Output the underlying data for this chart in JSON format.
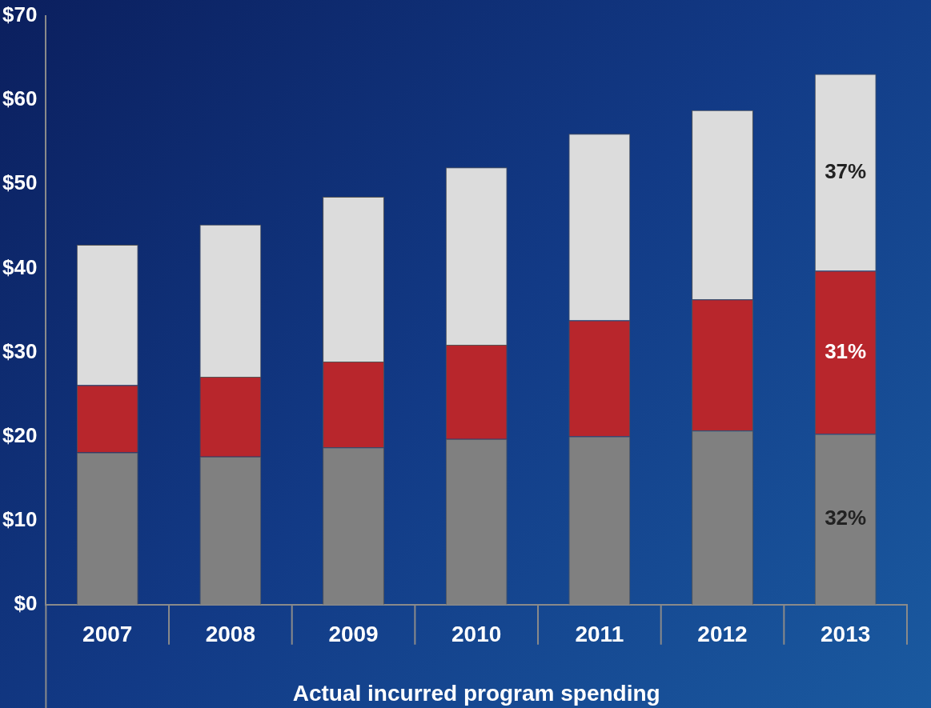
{
  "chart_data": {
    "type": "bar",
    "stacked": true,
    "xlabel": "Actual incurred program spending",
    "categories": [
      "2007",
      "2008",
      "2009",
      "2010",
      "2011",
      "2012",
      "2013"
    ],
    "series": [
      {
        "color": "#808080",
        "values": [
          18.1,
          17.6,
          18.7,
          19.7,
          20.0,
          20.7,
          20.3
        ]
      },
      {
        "color": "#b8262c",
        "values": [
          8.0,
          9.5,
          10.2,
          11.2,
          13.8,
          15.6,
          19.4
        ]
      },
      {
        "color": "#dcdcdc",
        "values": [
          16.7,
          18.1,
          19.6,
          21.1,
          22.2,
          22.5,
          23.4
        ]
      }
    ],
    "annotations": [
      "32%",
      "31%",
      "37%"
    ],
    "ylim": [
      0,
      70
    ],
    "yticks": [
      {
        "value": 0,
        "label": "$0"
      },
      {
        "value": 10,
        "label": "$10"
      },
      {
        "value": 20,
        "label": "$20"
      },
      {
        "value": 30,
        "label": "$30"
      },
      {
        "value": 40,
        "label": "$40"
      },
      {
        "value": 50,
        "label": "$50"
      },
      {
        "value": 60,
        "label": "$60"
      },
      {
        "value": 70,
        "label": "$70"
      }
    ],
    "grid": false,
    "legend": false
  }
}
